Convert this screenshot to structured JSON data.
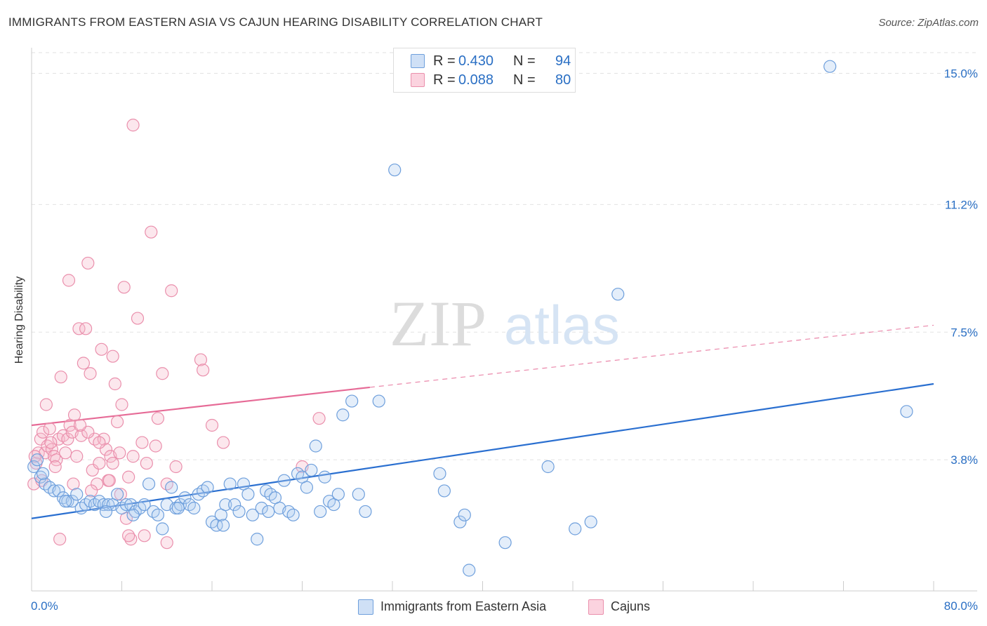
{
  "title": "IMMIGRANTS FROM EASTERN ASIA VS CAJUN HEARING DISABILITY CORRELATION CHART",
  "source": "Source: ZipAtlas.com",
  "watermark": {
    "zip": "ZIP",
    "atlas": "atlas"
  },
  "stats": [
    {
      "r_label": "R =",
      "r_value": "0.430",
      "n_label": "N =",
      "n_value": "94",
      "color": "#a7c7ee"
    },
    {
      "r_label": "R =",
      "r_value": "0.088",
      "n_label": "N =",
      "n_value": "80",
      "color": "#f5b8cb"
    }
  ],
  "legend": [
    {
      "label": "Immigrants from Eastern Asia",
      "color": "#a7c7ee"
    },
    {
      "label": "Cajuns",
      "color": "#f5b8cb"
    }
  ],
  "chart_data": {
    "type": "scatter",
    "title": "IMMIGRANTS FROM EASTERN ASIA VS CAJUN HEARING DISABILITY CORRELATION CHART",
    "xlabel": "",
    "ylabel": "Hearing Disability",
    "xlim": [
      0,
      80
    ],
    "ylim": [
      0,
      15.6
    ],
    "x_tick_labels": [
      "0.0%",
      "80.0%"
    ],
    "y_ticks": [
      3.8,
      7.5,
      11.2,
      15.0
    ],
    "y_tick_labels": [
      "3.8%",
      "7.5%",
      "11.2%",
      "15.0%"
    ],
    "grid": "horizontal dashed",
    "legend_position": "bottom",
    "series": [
      {
        "name": "Immigrants from Eastern Asia",
        "color": "#7aa9e0",
        "line_color": "#2a6fd0",
        "trend": {
          "x": [
            0,
            80
          ],
          "y": [
            2.1,
            6.0
          ]
        },
        "points": [
          [
            0.2,
            3.6
          ],
          [
            0.5,
            3.8
          ],
          [
            0.8,
            3.3
          ],
          [
            1.2,
            3.1
          ],
          [
            1.6,
            3.0
          ],
          [
            2.0,
            2.9
          ],
          [
            2.4,
            2.9
          ],
          [
            2.8,
            2.7
          ],
          [
            3.2,
            2.6
          ],
          [
            3.6,
            2.6
          ],
          [
            4.0,
            2.8
          ],
          [
            4.4,
            2.4
          ],
          [
            4.8,
            2.5
          ],
          [
            5.2,
            2.6
          ],
          [
            5.6,
            2.5
          ],
          [
            6.0,
            2.6
          ],
          [
            6.4,
            2.5
          ],
          [
            6.8,
            2.5
          ],
          [
            7.2,
            2.5
          ],
          [
            7.6,
            2.8
          ],
          [
            8.0,
            2.4
          ],
          [
            8.4,
            2.5
          ],
          [
            8.8,
            2.5
          ],
          [
            9.2,
            2.3
          ],
          [
            9.6,
            2.4
          ],
          [
            10.0,
            2.5
          ],
          [
            10.4,
            3.1
          ],
          [
            10.8,
            2.3
          ],
          [
            11.2,
            2.2
          ],
          [
            11.6,
            1.8
          ],
          [
            12.0,
            2.5
          ],
          [
            12.4,
            3.0
          ],
          [
            12.8,
            2.4
          ],
          [
            13.2,
            2.5
          ],
          [
            13.6,
            2.7
          ],
          [
            14.0,
            2.5
          ],
          [
            14.4,
            2.4
          ],
          [
            14.8,
            2.8
          ],
          [
            15.2,
            2.9
          ],
          [
            15.6,
            3.0
          ],
          [
            16.0,
            2.0
          ],
          [
            16.4,
            1.9
          ],
          [
            16.8,
            2.2
          ],
          [
            17.2,
            2.5
          ],
          [
            17.6,
            3.1
          ],
          [
            18.0,
            2.5
          ],
          [
            18.4,
            2.3
          ],
          [
            18.8,
            3.1
          ],
          [
            19.2,
            2.8
          ],
          [
            19.6,
            2.2
          ],
          [
            20.0,
            1.5
          ],
          [
            20.4,
            2.4
          ],
          [
            20.8,
            2.9
          ],
          [
            21.2,
            2.8
          ],
          [
            21.6,
            2.7
          ],
          [
            22.0,
            2.4
          ],
          [
            22.4,
            3.2
          ],
          [
            22.8,
            2.3
          ],
          [
            23.2,
            2.2
          ],
          [
            23.6,
            3.4
          ],
          [
            24.0,
            3.3
          ],
          [
            24.4,
            3.0
          ],
          [
            24.8,
            3.5
          ],
          [
            25.2,
            4.2
          ],
          [
            25.6,
            2.3
          ],
          [
            26.0,
            3.3
          ],
          [
            26.4,
            2.6
          ],
          [
            26.8,
            2.5
          ],
          [
            27.2,
            2.8
          ],
          [
            27.6,
            5.1
          ],
          [
            28.4,
            5.5
          ],
          [
            29.0,
            2.8
          ],
          [
            29.6,
            2.3
          ],
          [
            30.8,
            5.5
          ],
          [
            32.2,
            12.2
          ],
          [
            36.2,
            3.4
          ],
          [
            36.6,
            2.9
          ],
          [
            38.0,
            2.0
          ],
          [
            38.4,
            2.2
          ],
          [
            38.8,
            0.6
          ],
          [
            42.0,
            1.4
          ],
          [
            45.8,
            3.6
          ],
          [
            48.2,
            1.8
          ],
          [
            49.6,
            2.0
          ],
          [
            52.0,
            8.6
          ],
          [
            70.8,
            15.2
          ],
          [
            77.6,
            5.2
          ],
          [
            1.0,
            3.4
          ],
          [
            3.0,
            2.6
          ],
          [
            6.6,
            2.3
          ],
          [
            9.0,
            2.2
          ],
          [
            13.0,
            2.4
          ],
          [
            17.0,
            1.9
          ],
          [
            21.0,
            2.3
          ]
        ]
      },
      {
        "name": "Cajuns",
        "color": "#f0a0b8",
        "line_color": "#e66a96",
        "trend_solid": {
          "x": [
            0,
            30
          ],
          "y": [
            4.8,
            5.9
          ]
        },
        "trend_dashed": {
          "x": [
            30,
            80
          ],
          "y": [
            5.9,
            7.7
          ]
        },
        "points": [
          [
            0.2,
            3.1
          ],
          [
            0.4,
            3.7
          ],
          [
            0.6,
            4.0
          ],
          [
            0.8,
            4.4
          ],
          [
            1.0,
            4.6
          ],
          [
            1.2,
            4.0
          ],
          [
            1.4,
            4.2
          ],
          [
            1.6,
            4.7
          ],
          [
            1.8,
            4.1
          ],
          [
            2.0,
            3.9
          ],
          [
            2.2,
            3.8
          ],
          [
            2.4,
            4.4
          ],
          [
            2.6,
            6.2
          ],
          [
            2.8,
            4.5
          ],
          [
            3.0,
            4.0
          ],
          [
            3.2,
            4.4
          ],
          [
            3.4,
            4.8
          ],
          [
            3.6,
            4.6
          ],
          [
            3.8,
            5.1
          ],
          [
            4.0,
            3.9
          ],
          [
            4.2,
            7.6
          ],
          [
            4.4,
            4.5
          ],
          [
            4.6,
            6.6
          ],
          [
            4.8,
            7.6
          ],
          [
            5.0,
            9.5
          ],
          [
            5.2,
            6.3
          ],
          [
            5.4,
            3.5
          ],
          [
            5.6,
            4.4
          ],
          [
            5.8,
            3.1
          ],
          [
            6.0,
            3.7
          ],
          [
            6.2,
            7.0
          ],
          [
            6.4,
            4.4
          ],
          [
            6.6,
            4.1
          ],
          [
            6.8,
            3.2
          ],
          [
            7.0,
            3.9
          ],
          [
            7.2,
            3.7
          ],
          [
            7.4,
            6.0
          ],
          [
            7.6,
            4.9
          ],
          [
            7.8,
            4.0
          ],
          [
            8.0,
            5.4
          ],
          [
            8.2,
            8.8
          ],
          [
            8.4,
            2.1
          ],
          [
            8.6,
            3.3
          ],
          [
            8.8,
            1.5
          ],
          [
            9.0,
            13.5
          ],
          [
            9.4,
            7.9
          ],
          [
            9.8,
            4.3
          ],
          [
            10.2,
            3.7
          ],
          [
            10.6,
            10.4
          ],
          [
            11.2,
            5.0
          ],
          [
            11.6,
            6.3
          ],
          [
            12.0,
            3.1
          ],
          [
            12.4,
            8.7
          ],
          [
            12.8,
            3.6
          ],
          [
            15.0,
            6.7
          ],
          [
            16.0,
            4.8
          ],
          [
            17.0,
            4.3
          ],
          [
            24.0,
            3.6
          ],
          [
            25.5,
            5.0
          ],
          [
            5.0,
            4.6
          ],
          [
            2.5,
            1.5
          ],
          [
            10.0,
            1.6
          ],
          [
            12.0,
            1.4
          ],
          [
            6.0,
            4.3
          ],
          [
            9.0,
            3.9
          ],
          [
            3.3,
            9.0
          ],
          [
            7.2,
            6.8
          ],
          [
            15.2,
            6.4
          ],
          [
            4.3,
            4.8
          ],
          [
            1.3,
            5.4
          ],
          [
            0.9,
            3.2
          ],
          [
            2.1,
            3.6
          ],
          [
            3.7,
            3.1
          ],
          [
            5.3,
            2.9
          ],
          [
            7.9,
            2.8
          ],
          [
            11.0,
            4.2
          ],
          [
            1.7,
            4.3
          ],
          [
            6.9,
            3.2
          ],
          [
            8.6,
            1.6
          ],
          [
            0.3,
            3.9
          ]
        ]
      }
    ]
  }
}
